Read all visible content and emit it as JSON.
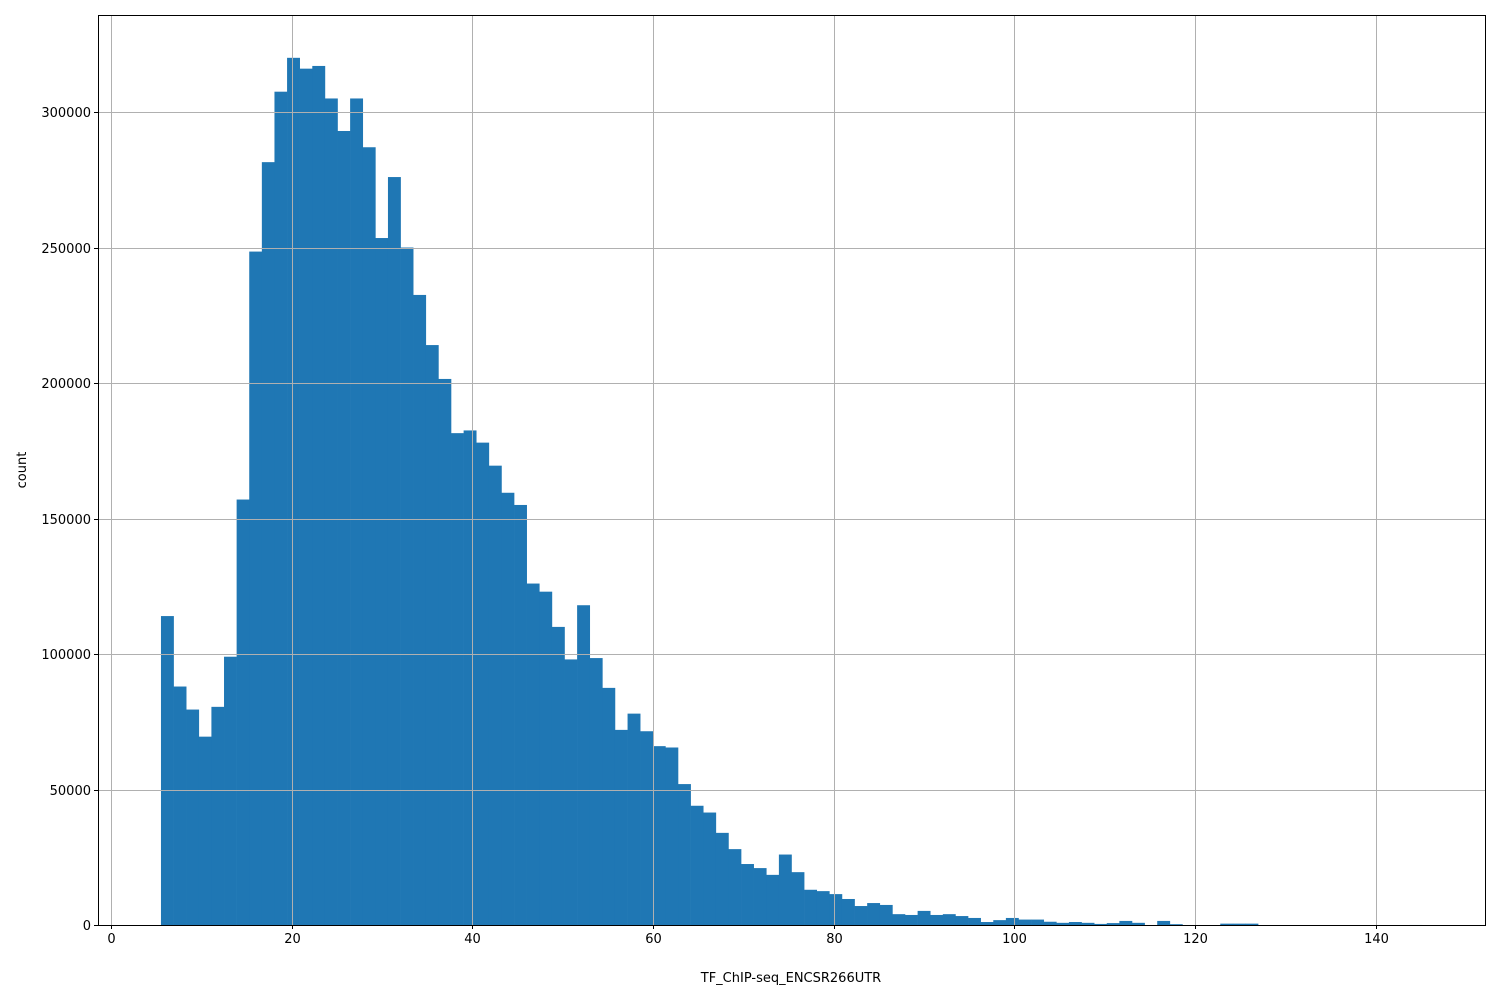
{
  "chart_data": {
    "type": "bar",
    "subtype": "histogram",
    "title": "",
    "xlabel": "TF_ChIP-seq_ENCSR266UTR",
    "ylabel": "count",
    "xlim": [
      -1.44,
      152.1
    ],
    "ylim": [
      0,
      335800
    ],
    "bin_start": 5.53,
    "bin_width": 1.396,
    "grid": true,
    "bar_color": "#1f77b4",
    "grid_color": "#b0b0b0",
    "x_ticks": [
      0,
      20,
      40,
      60,
      80,
      100,
      120,
      140
    ],
    "y_ticks": [
      0,
      50000,
      100000,
      150000,
      200000,
      250000,
      300000
    ],
    "values": [
      114000,
      88000,
      79500,
      69500,
      80500,
      99000,
      157000,
      248500,
      281500,
      307500,
      320000,
      316000,
      317000,
      305000,
      293000,
      305000,
      287000,
      253500,
      276000,
      250000,
      232500,
      214000,
      201500,
      181500,
      182500,
      178000,
      169500,
      159500,
      155000,
      126000,
      123000,
      110000,
      98000,
      118000,
      98500,
      87500,
      72000,
      78000,
      71500,
      66000,
      65500,
      52000,
      44000,
      41500,
      34000,
      28000,
      22500,
      21000,
      18500,
      26000,
      19500,
      13000,
      12500,
      11400,
      9600,
      7000,
      8100,
      7400,
      4000,
      3700,
      5200,
      3700,
      4000,
      3300,
      2600,
      1100,
      1800,
      2600,
      2000,
      2000,
      1200,
      800,
      1100,
      800,
      400,
      700,
      1500,
      800,
      0,
      1500,
      300,
      0,
      0,
      0,
      500,
      500,
      500,
      0,
      0,
      0,
      0,
      0,
      0,
      0,
      0,
      0,
      0,
      0,
      0,
      10
    ]
  }
}
